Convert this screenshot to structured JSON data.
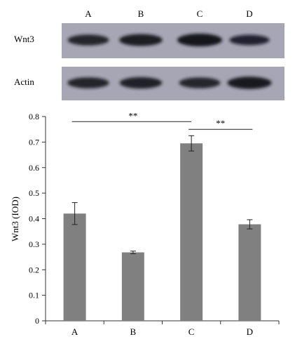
{
  "blot": {
    "lane_labels": [
      "A",
      "B",
      "C",
      "D"
    ],
    "rows": [
      {
        "label": "Wnt3",
        "intensity": [
          0.78,
          0.9,
          1.0,
          0.72
        ]
      },
      {
        "label": "Actin",
        "intensity": [
          0.8,
          0.85,
          0.78,
          0.95
        ]
      }
    ],
    "colors": {
      "background": "#a6a6b4",
      "band": "#14141c"
    }
  },
  "chart_data": {
    "type": "bar",
    "categories": [
      "A",
      "B",
      "C",
      "D"
    ],
    "values": [
      0.42,
      0.268,
      0.695,
      0.378
    ],
    "errors": [
      0.043,
      0.005,
      0.03,
      0.018
    ],
    "ylabel": "Wnt3 (IOD)",
    "xlabel": "",
    "ylim": [
      0,
      0.8
    ],
    "yticks": [
      "0",
      "0.1",
      "0.2",
      "0.3",
      "0.4",
      "0.5",
      "0.6",
      "0.7",
      "0.8"
    ],
    "grid": false,
    "bar_color": "#808080",
    "significance": [
      {
        "from": "A",
        "to": "C",
        "label": "**",
        "y": 0.78
      },
      {
        "from": "C",
        "to": "D",
        "label": "**",
        "y": 0.75
      }
    ]
  }
}
